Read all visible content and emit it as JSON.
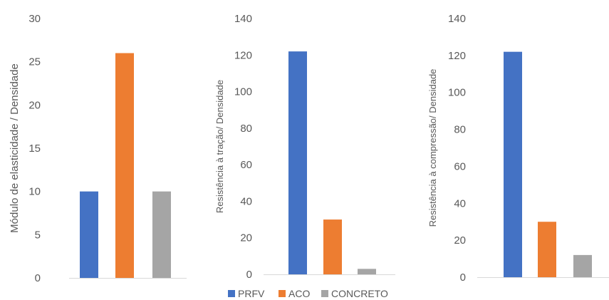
{
  "colors": {
    "PRFV": "#4472C4",
    "ACO": "#ED7D31",
    "CONCRETO": "#A5A5A5",
    "axis_text": "#595959",
    "baseline": "#d9d9d9"
  },
  "legend": {
    "placement": "bottom-center",
    "items": [
      "PRFV",
      "ACO",
      "CONCRETO"
    ]
  },
  "chart_data": [
    {
      "type": "bar",
      "title": "",
      "xlabel": "",
      "ylabel": "Módulo de elasticidade / Densidade",
      "ylim": [
        0,
        30
      ],
      "yticks": [
        0,
        5,
        10,
        15,
        20,
        25,
        30
      ],
      "grid": false,
      "series": [
        {
          "name": "PRFV",
          "values": [
            10
          ]
        },
        {
          "name": "ACO",
          "values": [
            26
          ]
        },
        {
          "name": "CONCRETO",
          "values": [
            10
          ]
        }
      ]
    },
    {
      "type": "bar",
      "title": "",
      "xlabel": "",
      "ylabel": "Resistência à tração/ Densidade",
      "ylim": [
        0,
        140
      ],
      "yticks": [
        0,
        20,
        40,
        60,
        80,
        100,
        120,
        140
      ],
      "grid": false,
      "series": [
        {
          "name": "PRFV",
          "values": [
            122
          ]
        },
        {
          "name": "ACO",
          "values": [
            30
          ]
        },
        {
          "name": "CONCRETO",
          "values": [
            3
          ]
        }
      ]
    },
    {
      "type": "bar",
      "title": "",
      "xlabel": "",
      "ylabel": "Resistência à compressão/ Densidade",
      "ylim": [
        0,
        140
      ],
      "yticks": [
        0,
        20,
        40,
        60,
        80,
        100,
        120,
        140
      ],
      "grid": false,
      "series": [
        {
          "name": "PRFV",
          "values": [
            122
          ]
        },
        {
          "name": "ACO",
          "values": [
            30
          ]
        },
        {
          "name": "CONCRETO",
          "values": [
            12
          ]
        }
      ]
    }
  ]
}
